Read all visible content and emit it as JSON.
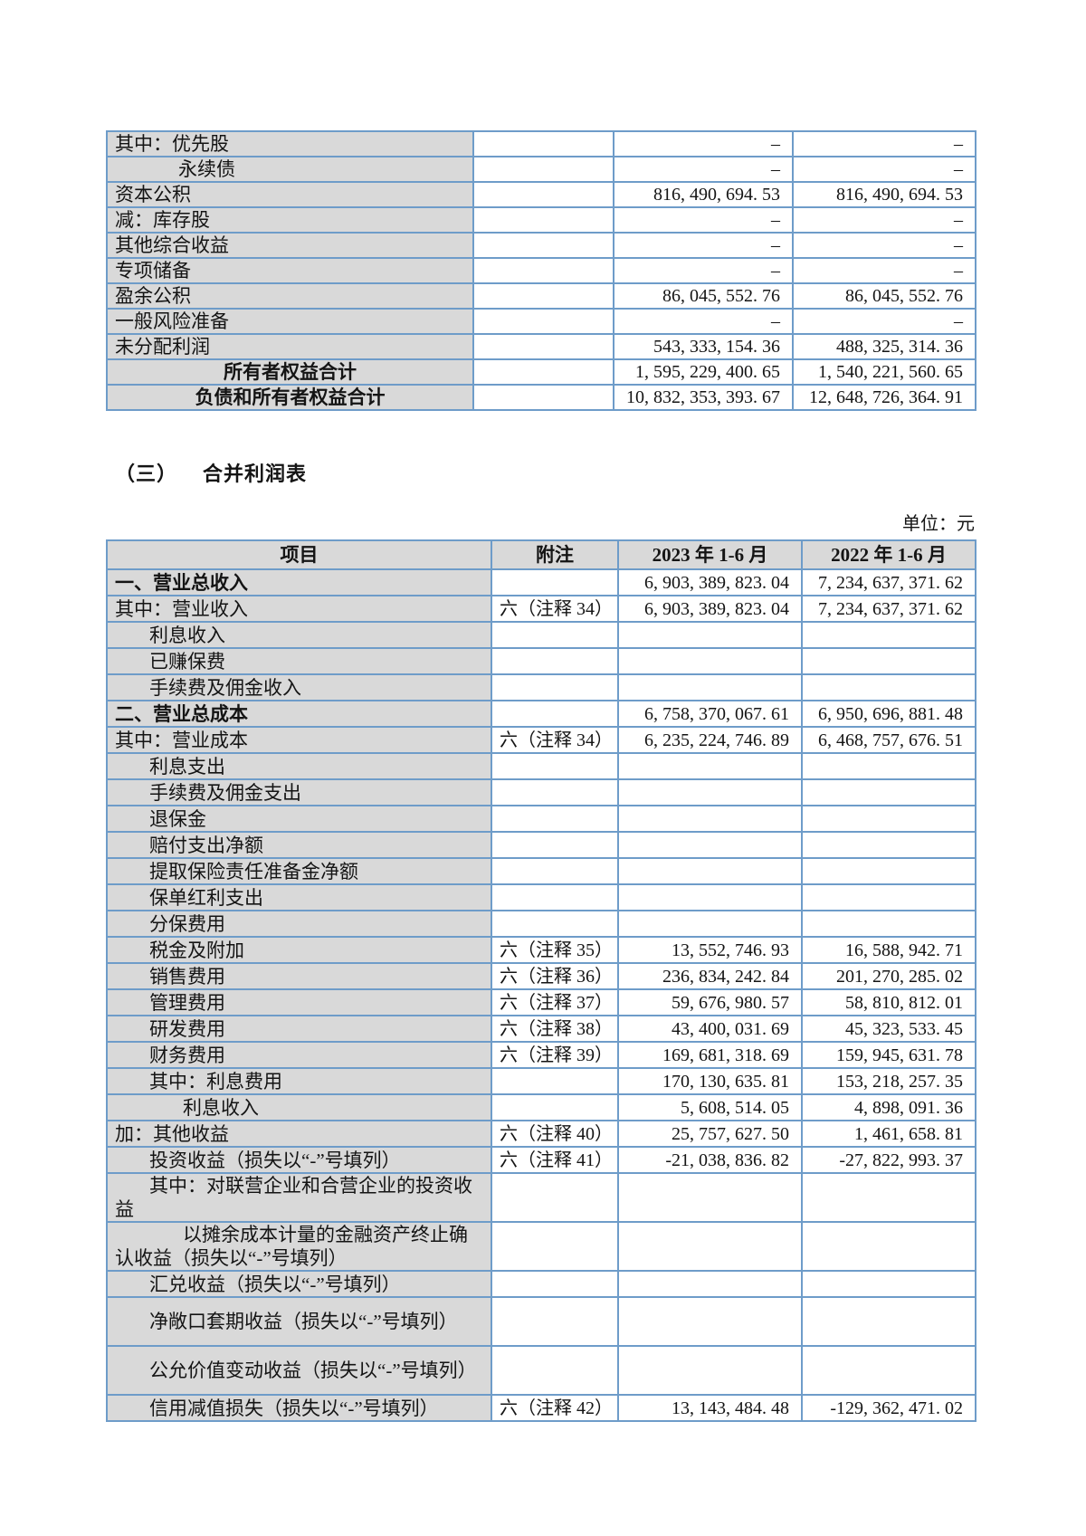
{
  "colors": {
    "border_blue": "#6e9cc9",
    "row_gray": "#d9d9d9",
    "page_bg": "#ffffff"
  },
  "section": {
    "number": "（三）",
    "title": "合并利润表"
  },
  "unit_label": "单位：元",
  "balance_sheet_tail": {
    "rows": [
      {
        "label": "其中：优先股",
        "indent": 0,
        "center": false,
        "bold": false,
        "note": "",
        "v2023": "–",
        "v2022": "–"
      },
      {
        "label": "永续债",
        "indent": 2,
        "center": false,
        "bold": false,
        "note": "",
        "v2023": "–",
        "v2022": "–"
      },
      {
        "label": "资本公积",
        "indent": 0,
        "center": false,
        "bold": false,
        "note": "",
        "v2023": "816, 490, 694. 53",
        "v2022": "816, 490, 694. 53"
      },
      {
        "label": "减：库存股",
        "indent": 0,
        "center": false,
        "bold": false,
        "note": "",
        "v2023": "–",
        "v2022": "–"
      },
      {
        "label": "其他综合收益",
        "indent": 0,
        "center": false,
        "bold": false,
        "note": "",
        "v2023": "–",
        "v2022": "–"
      },
      {
        "label": "专项储备",
        "indent": 0,
        "center": false,
        "bold": false,
        "note": "",
        "v2023": "–",
        "v2022": "–"
      },
      {
        "label": "盈余公积",
        "indent": 0,
        "center": false,
        "bold": false,
        "note": "",
        "v2023": "86, 045, 552. 76",
        "v2022": "86, 045, 552. 76"
      },
      {
        "label": "一般风险准备",
        "indent": 0,
        "center": false,
        "bold": false,
        "note": "",
        "v2023": "–",
        "v2022": "–"
      },
      {
        "label": "未分配利润",
        "indent": 0,
        "center": false,
        "bold": false,
        "note": "",
        "v2023": "543, 333, 154. 36",
        "v2022": "488, 325, 314. 36"
      },
      {
        "label": "所有者权益合计",
        "indent": 0,
        "center": true,
        "bold": true,
        "note": "",
        "v2023": "1, 595, 229, 400. 65",
        "v2022": "1, 540, 221, 560. 65"
      },
      {
        "label": "负债和所有者权益合计",
        "indent": 0,
        "center": true,
        "bold": true,
        "note": "",
        "v2023": "10, 832, 353, 393. 67",
        "v2022": "12, 648, 726, 364. 91"
      }
    ]
  },
  "income_statement": {
    "headers": [
      "项目",
      "附注",
      "2023 年 1-6 月",
      "2022 年 1-6 月"
    ],
    "rows": [
      {
        "label": "一、营业总收入",
        "indent": 0,
        "bold": true,
        "tall": false,
        "note": "",
        "v2023": "6, 903, 389, 823. 04",
        "v2022": "7, 234, 637, 371. 62"
      },
      {
        "label": "其中：营业收入",
        "indent": 0,
        "bold": false,
        "tall": false,
        "note": "六（注释 34）",
        "v2023": "6, 903, 389, 823. 04",
        "v2022": "7, 234, 637, 371. 62"
      },
      {
        "label": "利息收入",
        "indent": 1,
        "bold": false,
        "tall": false,
        "note": "",
        "v2023": "",
        "v2022": ""
      },
      {
        "label": "已赚保费",
        "indent": 1,
        "bold": false,
        "tall": false,
        "note": "",
        "v2023": "",
        "v2022": ""
      },
      {
        "label": "手续费及佣金收入",
        "indent": 1,
        "bold": false,
        "tall": false,
        "note": "",
        "v2023": "",
        "v2022": ""
      },
      {
        "label": "二、营业总成本",
        "indent": 0,
        "bold": true,
        "tall": false,
        "note": "",
        "v2023": "6, 758, 370, 067. 61",
        "v2022": "6, 950, 696, 881. 48"
      },
      {
        "label": "其中：营业成本",
        "indent": 0,
        "bold": false,
        "tall": false,
        "note": "六（注释 34）",
        "v2023": "6, 235, 224, 746. 89",
        "v2022": "6, 468, 757, 676. 51"
      },
      {
        "label": "利息支出",
        "indent": 1,
        "bold": false,
        "tall": false,
        "note": "",
        "v2023": "",
        "v2022": ""
      },
      {
        "label": "手续费及佣金支出",
        "indent": 1,
        "bold": false,
        "tall": false,
        "note": "",
        "v2023": "",
        "v2022": ""
      },
      {
        "label": "退保金",
        "indent": 1,
        "bold": false,
        "tall": false,
        "note": "",
        "v2023": "",
        "v2022": ""
      },
      {
        "label": "赔付支出净额",
        "indent": 1,
        "bold": false,
        "tall": false,
        "note": "",
        "v2023": "",
        "v2022": ""
      },
      {
        "label": "提取保险责任准备金净额",
        "indent": 1,
        "bold": false,
        "tall": false,
        "note": "",
        "v2023": "",
        "v2022": ""
      },
      {
        "label": "保单红利支出",
        "indent": 1,
        "bold": false,
        "tall": false,
        "note": "",
        "v2023": "",
        "v2022": ""
      },
      {
        "label": "分保费用",
        "indent": 1,
        "bold": false,
        "tall": false,
        "note": "",
        "v2023": "",
        "v2022": ""
      },
      {
        "label": "税金及附加",
        "indent": 1,
        "bold": false,
        "tall": false,
        "note": "六（注释 35）",
        "v2023": "13, 552, 746. 93",
        "v2022": "16, 588, 942. 71"
      },
      {
        "label": "销售费用",
        "indent": 1,
        "bold": false,
        "tall": false,
        "note": "六（注释 36）",
        "v2023": "236, 834, 242. 84",
        "v2022": "201, 270, 285. 02"
      },
      {
        "label": "管理费用",
        "indent": 1,
        "bold": false,
        "tall": false,
        "note": "六（注释 37）",
        "v2023": "59, 676, 980. 57",
        "v2022": "58, 810, 812. 01"
      },
      {
        "label": "研发费用",
        "indent": 1,
        "bold": false,
        "tall": false,
        "note": "六（注释 38）",
        "v2023": "43, 400, 031. 69",
        "v2022": "45, 323, 533. 45"
      },
      {
        "label": "财务费用",
        "indent": 1,
        "bold": false,
        "tall": false,
        "note": "六（注释 39）",
        "v2023": "169, 681, 318. 69",
        "v2022": "159, 945, 631. 78"
      },
      {
        "label": "其中：利息费用",
        "indent": 1,
        "bold": false,
        "tall": false,
        "note": "",
        "v2023": "170, 130, 635. 81",
        "v2022": "153, 218, 257. 35"
      },
      {
        "label": "利息收入",
        "indent": 2,
        "bold": false,
        "tall": false,
        "note": "",
        "v2023": "5, 608, 514. 05",
        "v2022": "4, 898, 091. 36"
      },
      {
        "label": "加：其他收益",
        "indent": 0,
        "bold": false,
        "tall": false,
        "note": "六（注释 40）",
        "v2023": "25, 757, 627. 50",
        "v2022": "1, 461, 658. 81"
      },
      {
        "label": "投资收益（损失以“-”号填列）",
        "indent": 1,
        "bold": false,
        "tall": false,
        "note": "六（注释 41）",
        "v2023": "-21, 038, 836. 82",
        "v2022": "-27, 822, 993. 37"
      },
      {
        "label": "其中：对联营企业和合营企业的投资收益",
        "indent": 1,
        "bold": false,
        "tall": true,
        "note": "",
        "v2023": "",
        "v2022": ""
      },
      {
        "label": "以摊余成本计量的金融资产终止确认收益（损失以“-”号填列）",
        "indent": 2,
        "bold": false,
        "tall": true,
        "note": "",
        "v2023": "",
        "v2022": ""
      },
      {
        "label": "汇兑收益（损失以“-”号填列）",
        "indent": 1,
        "bold": false,
        "tall": false,
        "note": "",
        "v2023": "",
        "v2022": ""
      },
      {
        "label": "净敞口套期收益（损失以“-”号填列）",
        "indent": 1,
        "bold": false,
        "tall": true,
        "note": "",
        "v2023": "",
        "v2022": ""
      },
      {
        "label": "公允价值变动收益（损失以“-”号填列）",
        "indent": 1,
        "bold": false,
        "tall": true,
        "note": "",
        "v2023": "",
        "v2022": ""
      },
      {
        "label": "信用减值损失（损失以“-”号填列）",
        "indent": 1,
        "bold": false,
        "tall": false,
        "note": "六（注释 42）",
        "v2023": "13, 143, 484. 48",
        "v2022": "-129, 362, 471. 02"
      }
    ]
  }
}
